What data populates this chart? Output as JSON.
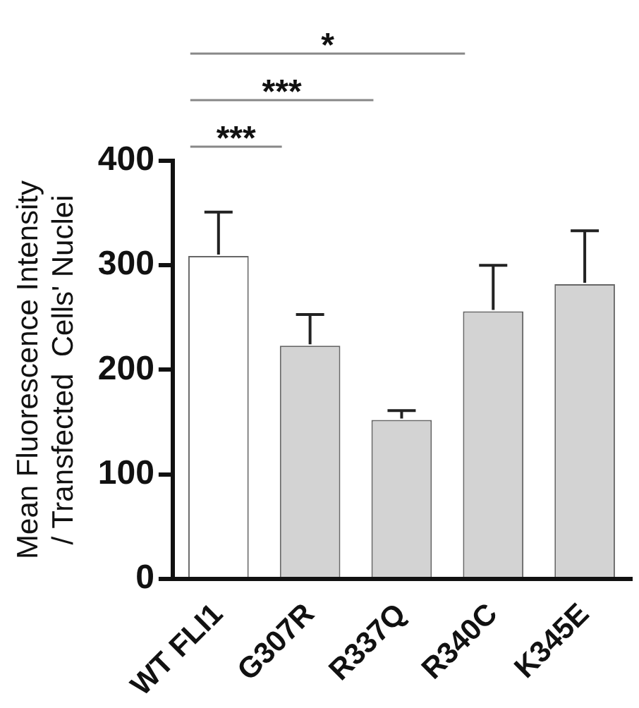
{
  "chart_data": {
    "type": "bar",
    "ylabel": "Mean Fluorescence Intensity\n/ Transfected  Cells' Nuclei",
    "categories": [
      "WT FLI1",
      "G307R",
      "R337Q",
      "R340C",
      "K345E"
    ],
    "values": [
      309,
      223,
      152,
      256,
      282
    ],
    "errors": [
      [
        309,
        351
      ],
      [
        223,
        253
      ],
      [
        152,
        161
      ],
      [
        256,
        300
      ],
      [
        282,
        333
      ]
    ],
    "colors": [
      "#ffffff",
      "#d3d3d3",
      "#d3d3d3",
      "#d3d3d3",
      "#d3d3d3"
    ],
    "ylim": [
      0,
      400
    ],
    "yticks": [
      0,
      100,
      200,
      300,
      400
    ],
    "grid": false,
    "legend": false,
    "annotations": [
      "*",
      "***",
      "***"
    ]
  }
}
